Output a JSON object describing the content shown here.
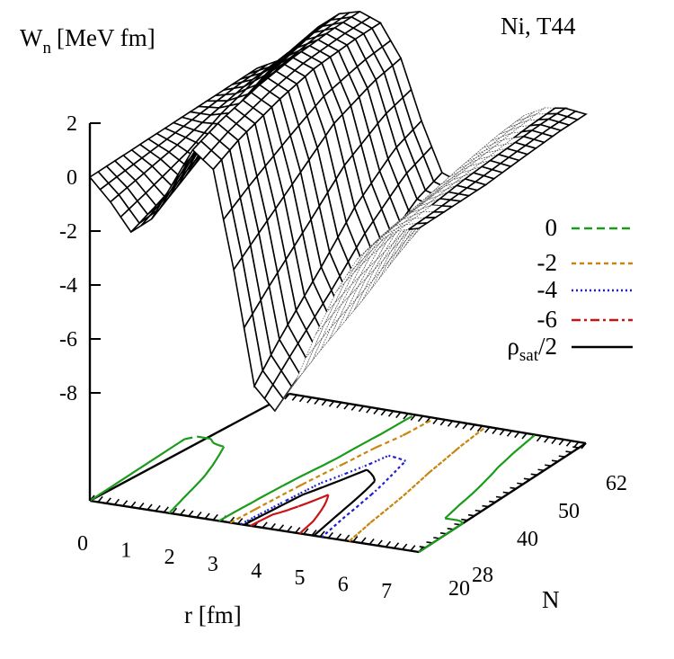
{
  "chart_data": {
    "type": "surface3d",
    "title": "Ni, T44",
    "zlabel": "W_n [MeV fm]",
    "zlabel_main": "W",
    "zlabel_sub": "n",
    "zlabel_unit": "[MeV fm]",
    "xlabel": "r [fm]",
    "ylabel": "N",
    "x_ticks": [
      "0",
      "1",
      "2",
      "3",
      "4",
      "5",
      "6",
      "7"
    ],
    "y_ticks": [
      "20",
      "28",
      "40",
      "50",
      "62"
    ],
    "z_ticks": [
      "2",
      "0",
      "-2",
      "-4",
      "-6",
      "-8"
    ],
    "xlim": [
      0,
      8
    ],
    "ylim": [
      20,
      70
    ],
    "zlim": [
      -8,
      2
    ],
    "x": [
      0,
      0.5,
      1,
      1.5,
      2,
      2.5,
      3,
      3.5,
      4,
      4.5,
      5,
      5.5,
      6,
      6.5,
      7,
      7.5,
      8
    ],
    "N": [
      20,
      28,
      40,
      50,
      62,
      70
    ],
    "W": [
      [
        0.0,
        -0.8,
        -1.8,
        -1.2,
        0.2,
        1.6,
        1.0,
        -2.6,
        -6.8,
        -7.6,
        -6.4,
        -4.5,
        -2.8,
        -1.5,
        -0.7,
        -0.2,
        0.0
      ],
      [
        0.0,
        -0.6,
        -1.4,
        -0.6,
        0.8,
        2.0,
        1.5,
        -1.8,
        -5.6,
        -6.8,
        -5.8,
        -4.0,
        -2.4,
        -1.2,
        -0.5,
        -0.1,
        0.0
      ],
      [
        0.0,
        -0.3,
        -0.7,
        0.3,
        1.5,
        2.4,
        2.0,
        -0.6,
        -4.0,
        -5.6,
        -5.0,
        -3.4,
        -2.0,
        -0.9,
        -0.3,
        0.1,
        0.0
      ],
      [
        0.0,
        0.0,
        0.2,
        1.1,
        2.0,
        2.6,
        2.3,
        0.4,
        -2.6,
        -4.4,
        -4.2,
        -2.8,
        -1.5,
        -0.6,
        -0.1,
        0.2,
        0.1
      ],
      [
        0.0,
        0.3,
        0.9,
        1.7,
        2.4,
        2.7,
        2.4,
        1.0,
        -1.4,
        -3.2,
        -3.4,
        -2.3,
        -1.1,
        -0.3,
        0.1,
        0.3,
        0.2
      ],
      [
        0.0,
        0.4,
        1.1,
        1.9,
        2.5,
        2.7,
        2.4,
        1.2,
        -1.0,
        -2.8,
        -3.1,
        -2.1,
        -1.0,
        -0.2,
        0.2,
        0.3,
        0.2
      ]
    ],
    "contour_levels": [
      {
        "label": "0",
        "color": "#1a9c1a",
        "dash": "9 5"
      },
      {
        "label": "-2",
        "color": "#c8860e",
        "dash": "5 4"
      },
      {
        "label": "-4",
        "color": "#1e1ed2",
        "dash": "2 3"
      },
      {
        "label": "-6",
        "color": "#c81414",
        "dash": "10 4 3 4"
      },
      {
        "label": "ρsat/2",
        "label_main": "ρ",
        "label_sub": "sat",
        "label_tail": "/2",
        "color": "#000000",
        "dash": ""
      }
    ],
    "legend_position": "right"
  }
}
